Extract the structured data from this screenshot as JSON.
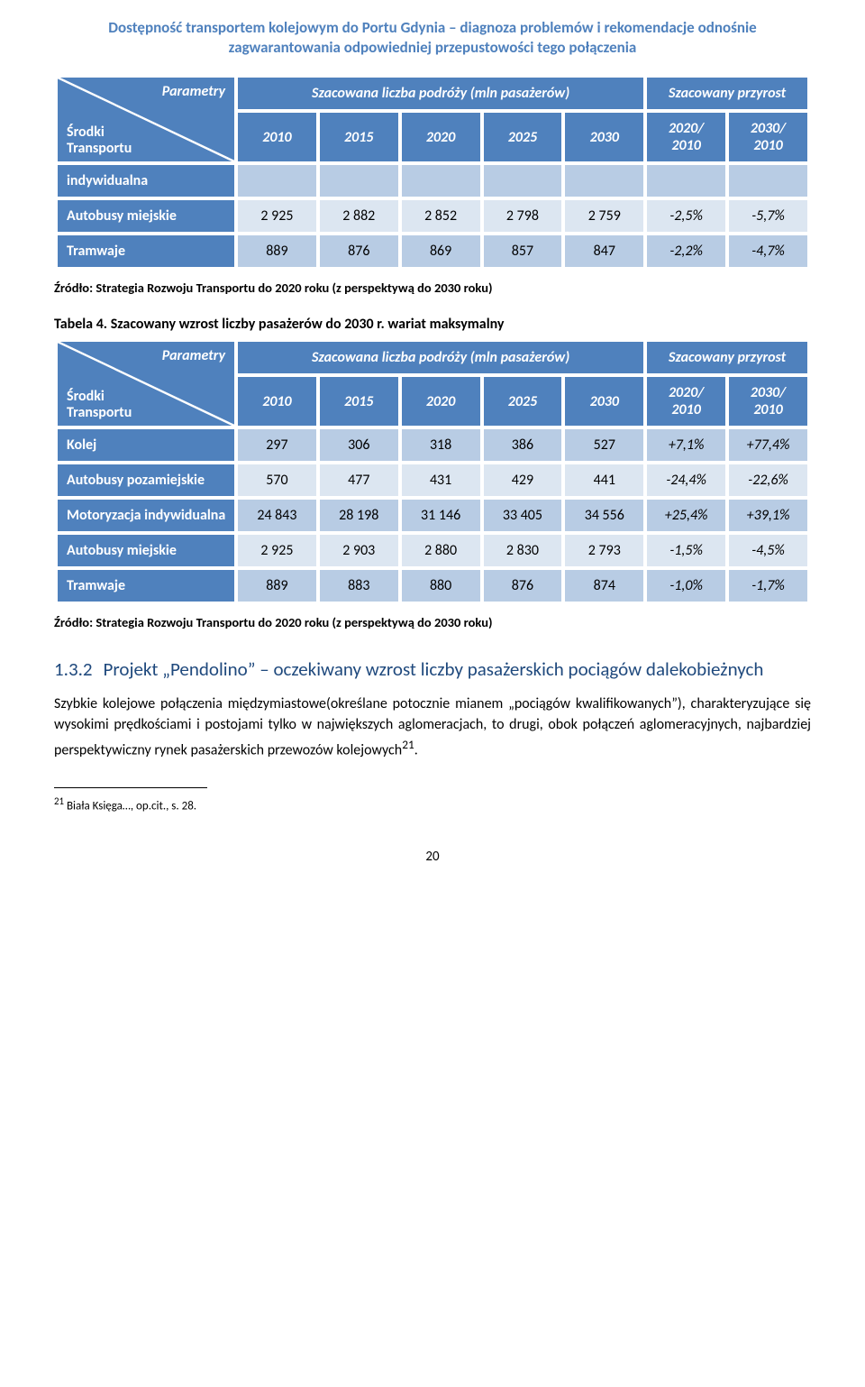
{
  "doc_title": "Dostępność transportem kolejowym do Portu Gdynia – diagnoza problemów i rekomendacje odnośnie zagwarantowania odpowiedniej przepustowości tego połączenia",
  "table1": {
    "diag_top": "Parametry",
    "diag_bottom": "Środki\nTransportu",
    "span1": "Szacowana liczba podróży (mln pasażerów)",
    "span2": "Szacowany przyrost",
    "years": [
      "2010",
      "2015",
      "2020",
      "2025",
      "2030"
    ],
    "ratio1_top": "2020/",
    "ratio1_bot": "2010",
    "ratio2_top": "2030/",
    "ratio2_bot": "2010",
    "rows": [
      {
        "label": "indywidualna",
        "vals": [
          "",
          "",
          "",
          "",
          "",
          "",
          ""
        ],
        "empty": true
      },
      {
        "label": "Autobusy miejskie",
        "vals": [
          "2 925",
          "2 882",
          "2 852",
          "2 798",
          "2 759",
          "-2,5%",
          "-5,7%"
        ]
      },
      {
        "label": "Tramwaje",
        "vals": [
          "889",
          "876",
          "869",
          "857",
          "847",
          "-2,2%",
          "-4,7%"
        ]
      }
    ]
  },
  "source1": "Źródło: Strategia Rozwoju Transportu do 2020 roku (z perspektywą do 2030 roku)",
  "caption2": "Tabela 4. Szacowany wzrost liczby pasażerów do 2030 r. wariat maksymalny",
  "table2": {
    "diag_top": "Parametry",
    "diag_bottom": "Środki\nTransportu",
    "span1": "Szacowana liczba podróży (mln pasażerów)",
    "span2": "Szacowany przyrost",
    "years": [
      "2010",
      "2015",
      "2020",
      "2025",
      "2030"
    ],
    "ratio1_top": "2020/",
    "ratio1_bot": "2010",
    "ratio2_top": "2030/",
    "ratio2_bot": "2010",
    "rows": [
      {
        "label": "Kolej",
        "vals": [
          "297",
          "306",
          "318",
          "386",
          "527",
          "+7,1%",
          "+77,4%"
        ]
      },
      {
        "label": "Autobusy pozamiejskie",
        "vals": [
          "570",
          "477",
          "431",
          "429",
          "441",
          "-24,4%",
          "-22,6%"
        ]
      },
      {
        "label": "Motoryzacja indywidualna",
        "vals": [
          "24 843",
          "28 198",
          "31 146",
          "33 405",
          "34 556",
          "+25,4%",
          "+39,1%"
        ]
      },
      {
        "label": "Autobusy miejskie",
        "vals": [
          "2 925",
          "2 903",
          "2 880",
          "2 830",
          "2 793",
          "-1,5%",
          "-4,5%"
        ]
      },
      {
        "label": "Tramwaje",
        "vals": [
          "889",
          "883",
          "880",
          "876",
          "874",
          "-1,0%",
          "-1,7%"
        ]
      }
    ]
  },
  "source2": "Źródło: Strategia Rozwoju Transportu do 2020 roku (z perspektywą do 2030 roku)",
  "section": {
    "num": "1.3.2",
    "text": "Projekt „Pendolino” – oczekiwany wzrost liczby pasażerskich pociągów dalekobieżnych"
  },
  "paragraph": "Szybkie kolejowe połączenia międzymiastowe(określane potocznie mianem „pociągów kwalifikowanych”), charakteryzujące się wysokimi prędkościami i postojami tylko w największych aglomeracjach, to drugi, obok połączeń aglomeracyjnych, najbardziej perspektywiczny rynek pasażerskich przewozów kolejowych",
  "footnote_marker": "21",
  "footnote": "Biała Księga…, op.cit., s. 28.",
  "page_number": "20",
  "colors": {
    "header_blue": "#4f81bd",
    "band_light": "#dce6f1",
    "band_mid": "#b8cce4",
    "heading_color": "#1f497d"
  }
}
